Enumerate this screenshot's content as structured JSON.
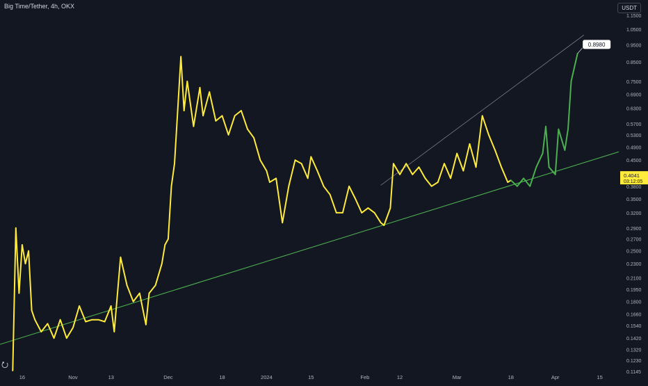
{
  "header": {
    "symbol_title": "Big Time/Tether, 4h, OKX",
    "currency": "USDT"
  },
  "colors": {
    "background": "#131722",
    "price_line": "#ffeb3b",
    "projection_line": "#4caf50",
    "support_line": "#4caf50",
    "resistance_line": "#787b86",
    "axis_text": "#b2b5be"
  },
  "chart_data": {
    "type": "line",
    "scale": "log",
    "title": "Big Time/Tether, 4h, OKX",
    "xlabel": "",
    "ylabel": "",
    "ylim": [
      0.1145,
      1.15
    ],
    "grid": false,
    "x_ticks": [
      {
        "label": "16",
        "date": "2023-10-16"
      },
      {
        "label": "Nov",
        "date": "2023-11-01"
      },
      {
        "label": "13",
        "date": "2023-11-13"
      },
      {
        "label": "Dec",
        "date": "2023-12-01"
      },
      {
        "label": "18",
        "date": "2023-12-18"
      },
      {
        "label": "2024",
        "date": "2024-01-01"
      },
      {
        "label": "15",
        "date": "2024-01-15"
      },
      {
        "label": "Feb",
        "date": "2024-02-01"
      },
      {
        "label": "12",
        "date": "2024-02-12"
      },
      {
        "label": "Mar",
        "date": "2024-03-01"
      },
      {
        "label": "18",
        "date": "2024-03-18"
      },
      {
        "label": "Apr",
        "date": "2024-04-01"
      },
      {
        "label": "15",
        "date": "2024-04-15"
      }
    ],
    "y_ticks": [
      "1.1500",
      "1.0500",
      "0.9500",
      "0.8500",
      "0.7500",
      "0.6900",
      "0.6300",
      "0.5700",
      "0.5300",
      "0.4900",
      "0.4500",
      "0.4100",
      "0.3800",
      "0.3500",
      "0.3200",
      "0.2900",
      "0.2700",
      "0.2500",
      "0.2300",
      "0.2100",
      "0.1950",
      "0.1800",
      "0.1660",
      "0.1540",
      "0.1420",
      "0.1320",
      "0.1230",
      "0.1145"
    ],
    "series": [
      {
        "role": "price",
        "color": "#ffeb3b",
        "points": [
          [
            "2023-10-13",
            0.115
          ],
          [
            "2023-10-14",
            0.29
          ],
          [
            "2023-10-15",
            0.19
          ],
          [
            "2023-10-16",
            0.26
          ],
          [
            "2023-10-17",
            0.23
          ],
          [
            "2023-10-18",
            0.25
          ],
          [
            "2023-10-19",
            0.17
          ],
          [
            "2023-10-20",
            0.16
          ],
          [
            "2023-10-22",
            0.148
          ],
          [
            "2023-10-24",
            0.156
          ],
          [
            "2023-10-26",
            0.142
          ],
          [
            "2023-10-28",
            0.16
          ],
          [
            "2023-10-30",
            0.142
          ],
          [
            "2023-11-01",
            0.152
          ],
          [
            "2023-11-03",
            0.175
          ],
          [
            "2023-11-05",
            0.158
          ],
          [
            "2023-11-07",
            0.16
          ],
          [
            "2023-11-09",
            0.16
          ],
          [
            "2023-11-11",
            0.158
          ],
          [
            "2023-11-13",
            0.175
          ],
          [
            "2023-11-14",
            0.148
          ],
          [
            "2023-11-16",
            0.24
          ],
          [
            "2023-11-18",
            0.2
          ],
          [
            "2023-11-20",
            0.18
          ],
          [
            "2023-11-22",
            0.19
          ],
          [
            "2023-11-24",
            0.155
          ],
          [
            "2023-11-25",
            0.19
          ],
          [
            "2023-11-27",
            0.2
          ],
          [
            "2023-11-29",
            0.23
          ],
          [
            "2023-11-30",
            0.26
          ],
          [
            "2023-12-01",
            0.27
          ],
          [
            "2023-12-02",
            0.38
          ],
          [
            "2023-12-03",
            0.44
          ],
          [
            "2023-12-05",
            0.88
          ],
          [
            "2023-12-06",
            0.62
          ],
          [
            "2023-12-07",
            0.75
          ],
          [
            "2023-12-09",
            0.56
          ],
          [
            "2023-12-11",
            0.72
          ],
          [
            "2023-12-12",
            0.6
          ],
          [
            "2023-12-14",
            0.7
          ],
          [
            "2023-12-16",
            0.58
          ],
          [
            "2023-12-18",
            0.6
          ],
          [
            "2023-12-20",
            0.53
          ],
          [
            "2023-12-22",
            0.6
          ],
          [
            "2023-12-24",
            0.62
          ],
          [
            "2023-12-26",
            0.55
          ],
          [
            "2023-12-28",
            0.52
          ],
          [
            "2023-12-30",
            0.45
          ],
          [
            "2024-01-01",
            0.42
          ],
          [
            "2024-01-02",
            0.39
          ],
          [
            "2024-01-04",
            0.4
          ],
          [
            "2024-01-06",
            0.3
          ],
          [
            "2024-01-08",
            0.38
          ],
          [
            "2024-01-10",
            0.45
          ],
          [
            "2024-01-12",
            0.44
          ],
          [
            "2024-01-14",
            0.4
          ],
          [
            "2024-01-15",
            0.46
          ],
          [
            "2024-01-17",
            0.42
          ],
          [
            "2024-01-19",
            0.38
          ],
          [
            "2024-01-21",
            0.36
          ],
          [
            "2024-01-23",
            0.32
          ],
          [
            "2024-01-25",
            0.32
          ],
          [
            "2024-01-27",
            0.38
          ],
          [
            "2024-01-29",
            0.35
          ],
          [
            "2024-01-31",
            0.32
          ],
          [
            "2024-02-02",
            0.33
          ],
          [
            "2024-02-04",
            0.32
          ],
          [
            "2024-02-06",
            0.3
          ],
          [
            "2024-02-07",
            0.295
          ],
          [
            "2024-02-09",
            0.33
          ],
          [
            "2024-02-10",
            0.44
          ],
          [
            "2024-02-12",
            0.41
          ],
          [
            "2024-02-14",
            0.44
          ],
          [
            "2024-02-16",
            0.41
          ],
          [
            "2024-02-18",
            0.43
          ],
          [
            "2024-02-20",
            0.4
          ],
          [
            "2024-02-22",
            0.38
          ],
          [
            "2024-02-24",
            0.39
          ],
          [
            "2024-02-26",
            0.44
          ],
          [
            "2024-02-28",
            0.4
          ],
          [
            "2024-03-01",
            0.47
          ],
          [
            "2024-03-03",
            0.42
          ],
          [
            "2024-03-05",
            0.5
          ],
          [
            "2024-03-07",
            0.43
          ],
          [
            "2024-03-09",
            0.6
          ],
          [
            "2024-03-11",
            0.53
          ],
          [
            "2024-03-13",
            0.48
          ],
          [
            "2024-03-15",
            0.43
          ],
          [
            "2024-03-17",
            0.39
          ],
          [
            "2024-03-18",
            0.395
          ]
        ]
      },
      {
        "role": "projection",
        "color": "#4caf50",
        "points": [
          [
            "2024-03-18",
            0.395
          ],
          [
            "2024-03-20",
            0.38
          ],
          [
            "2024-03-22",
            0.4
          ],
          [
            "2024-03-24",
            0.38
          ],
          [
            "2024-03-26",
            0.43
          ],
          [
            "2024-03-28",
            0.47
          ],
          [
            "2024-03-29",
            0.56
          ],
          [
            "2024-03-30",
            0.43
          ],
          [
            "2024-04-01",
            0.41
          ],
          [
            "2024-04-02",
            0.55
          ],
          [
            "2024-04-04",
            0.48
          ],
          [
            "2024-04-05",
            0.55
          ],
          [
            "2024-04-06",
            0.75
          ],
          [
            "2024-04-08",
            0.898
          ]
        ]
      }
    ],
    "trendlines": [
      {
        "role": "support",
        "color": "#4caf50",
        "from": [
          "2023-10-09",
          0.1364
        ],
        "to": [
          "2024-04-21",
          0.475
        ]
      },
      {
        "role": "resistance",
        "color": "#787b86",
        "from": [
          "2024-02-06",
          0.3824
        ],
        "to": [
          "2024-04-10",
          1.012
        ]
      }
    ],
    "labels": [
      {
        "text": "0.8980",
        "date": "2024-04-08",
        "value": 0.898,
        "style": "callout"
      },
      {
        "text": "0.4041",
        "sub": "03:12:05",
        "value": 0.4041,
        "style": "last-price"
      }
    ]
  }
}
